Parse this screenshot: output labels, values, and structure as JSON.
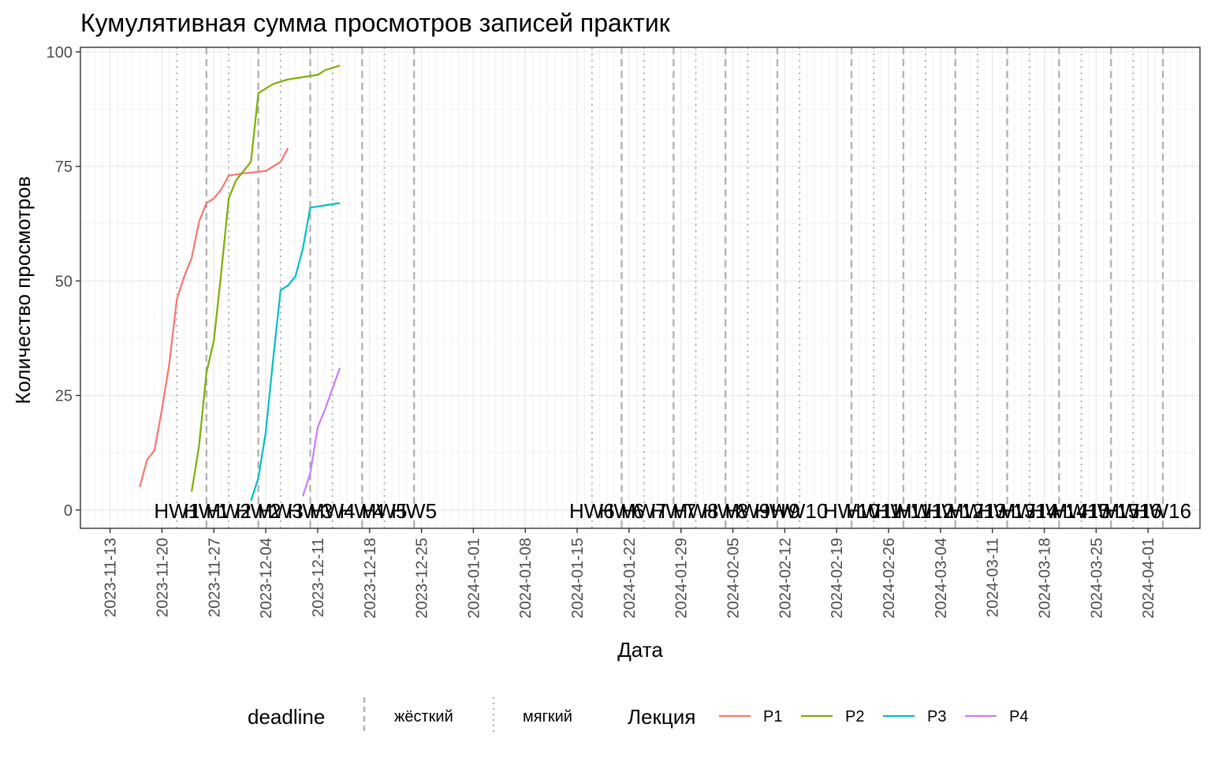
{
  "chart_data": {
    "type": "line",
    "title": "Кумулятивная сумма просмотров записей практик",
    "xlabel": "Дата",
    "ylabel": "Количество просмотров",
    "xlim": [
      "2023-11-09",
      "2024-04-08"
    ],
    "ylim": [
      -4,
      101
    ],
    "y_ticks": [
      0,
      25,
      50,
      75,
      100
    ],
    "x_ticks": [
      "2023-11-13",
      "2023-11-20",
      "2023-11-27",
      "2023-12-04",
      "2023-12-11",
      "2023-12-18",
      "2023-12-25",
      "2024-01-01",
      "2024-01-08",
      "2024-01-15",
      "2024-01-22",
      "2024-01-29",
      "2024-02-05",
      "2024-02-12",
      "2024-02-19",
      "2024-02-26",
      "2024-03-04",
      "2024-03-11",
      "2024-03-18",
      "2024-03-25",
      "2024-04-01"
    ],
    "grid": true,
    "legend_position": "bottom",
    "series": [
      {
        "name": "P1",
        "color": "#F8766D",
        "points": [
          [
            "2023-11-17",
            5
          ],
          [
            "2023-11-18",
            11
          ],
          [
            "2023-11-19",
            13
          ],
          [
            "2023-11-20",
            22
          ],
          [
            "2023-11-21",
            32
          ],
          [
            "2023-11-22",
            46
          ],
          [
            "2023-11-23",
            51
          ],
          [
            "2023-11-24",
            55
          ],
          [
            "2023-11-25",
            63
          ],
          [
            "2023-11-26",
            67
          ],
          [
            "2023-11-27",
            68
          ],
          [
            "2023-11-28",
            70
          ],
          [
            "2023-11-29",
            73
          ],
          [
            "2023-12-01",
            73.5
          ],
          [
            "2023-12-04",
            74
          ],
          [
            "2023-12-06",
            76
          ],
          [
            "2023-12-07",
            79
          ]
        ]
      },
      {
        "name": "P2",
        "color": "#7CAE00",
        "points": [
          [
            "2023-11-24",
            4
          ],
          [
            "2023-11-25",
            14
          ],
          [
            "2023-11-26",
            30
          ],
          [
            "2023-11-27",
            37
          ],
          [
            "2023-11-28",
            52
          ],
          [
            "2023-11-29",
            68
          ],
          [
            "2023-11-30",
            72
          ],
          [
            "2023-12-01",
            74
          ],
          [
            "2023-12-02",
            76
          ],
          [
            "2023-12-03",
            91
          ],
          [
            "2023-12-05",
            93
          ],
          [
            "2023-12-07",
            94
          ],
          [
            "2023-12-11",
            95
          ],
          [
            "2023-12-12",
            96
          ],
          [
            "2023-12-14",
            97
          ]
        ]
      },
      {
        "name": "P3",
        "color": "#00BFC4",
        "points": [
          [
            "2023-12-02",
            2
          ],
          [
            "2023-12-03",
            7
          ],
          [
            "2023-12-04",
            17
          ],
          [
            "2023-12-05",
            33
          ],
          [
            "2023-12-06",
            48
          ],
          [
            "2023-12-07",
            49
          ],
          [
            "2023-12-08",
            51
          ],
          [
            "2023-12-09",
            57
          ],
          [
            "2023-12-10",
            66
          ],
          [
            "2023-12-14",
            67
          ]
        ]
      },
      {
        "name": "P4",
        "color": "#C77CFF",
        "points": [
          [
            "2023-12-09",
            3
          ],
          [
            "2023-12-10",
            8
          ],
          [
            "2023-12-11",
            18
          ],
          [
            "2023-12-12",
            22
          ],
          [
            "2023-12-14",
            31
          ]
        ]
      }
    ],
    "deadlines": {
      "hard": [
        "2023-11-26",
        "2023-12-03",
        "2023-12-10",
        "2023-12-17",
        "2023-12-24",
        "2024-01-21",
        "2024-01-28",
        "2024-02-04",
        "2024-02-11",
        "2024-02-21",
        "2024-02-28",
        "2024-03-06",
        "2024-03-13",
        "2024-03-20",
        "2024-03-27",
        "2024-03-34"
      ],
      "soft": [
        "2023-11-22",
        "2023-11-29",
        "2023-12-06",
        "2023-12-13",
        "2023-12-20",
        "2024-01-17",
        "2024-01-24",
        "2024-01-31",
        "2024-02-07",
        "2024-02-14",
        "2024-02-24",
        "2024-03-02",
        "2024-03-09",
        "2024-03-16",
        "2024-03-23",
        "2024-03-30"
      ]
    },
    "hw_labels": [
      {
        "text": "HW1",
        "date": "2023-11-22"
      },
      {
        "text": "HW1",
        "date": "2023-11-26"
      },
      {
        "text": "HW2",
        "date": "2023-11-29"
      },
      {
        "text": "HW2",
        "date": "2023-12-03"
      },
      {
        "text": "HW3",
        "date": "2023-12-06"
      },
      {
        "text": "HW3",
        "date": "2023-12-10"
      },
      {
        "text": "HW4",
        "date": "2023-12-13"
      },
      {
        "text": "HW4",
        "date": "2023-12-17"
      },
      {
        "text": "HW5",
        "date": "2023-12-20"
      },
      {
        "text": "HW5",
        "date": "2023-12-24"
      },
      {
        "text": "HW6",
        "date": "2024-01-17"
      },
      {
        "text": "HW6",
        "date": "2024-01-21"
      },
      {
        "text": "HW7",
        "date": "2024-01-24"
      },
      {
        "text": "HW7",
        "date": "2024-01-28"
      },
      {
        "text": "HW8",
        "date": "2024-01-31"
      },
      {
        "text": "HW8",
        "date": "2024-02-04"
      },
      {
        "text": "HW9",
        "date": "2024-02-07"
      },
      {
        "text": "HW9",
        "date": "2024-02-11"
      },
      {
        "text": "HW10",
        "date": "2024-02-14"
      },
      {
        "text": "HW10",
        "date": "2024-02-21"
      },
      {
        "text": "HW11",
        "date": "2024-02-24"
      },
      {
        "text": "HW11",
        "date": "2024-02-28"
      },
      {
        "text": "HW12",
        "date": "2024-03-02"
      },
      {
        "text": "HW12",
        "date": "2024-03-06"
      },
      {
        "text": "HW13",
        "date": "2024-03-09"
      },
      {
        "text": "HW13",
        "date": "2024-03-13"
      },
      {
        "text": "HW14",
        "date": "2024-03-16"
      },
      {
        "text": "HW14",
        "date": "2024-03-20"
      },
      {
        "text": "HW15",
        "date": "2024-03-23"
      },
      {
        "text": "HW15",
        "date": "2024-03-27"
      },
      {
        "text": "HW16",
        "date": "2024-03-30"
      },
      {
        "text": "HW16",
        "date": "2024-04-03"
      }
    ]
  },
  "legend": {
    "deadline_title": "deadline",
    "deadline_items": [
      {
        "label": "жёсткий",
        "style": "dashed"
      },
      {
        "label": "мягкий",
        "style": "dotted"
      }
    ],
    "lecture_title": "Лекция"
  }
}
